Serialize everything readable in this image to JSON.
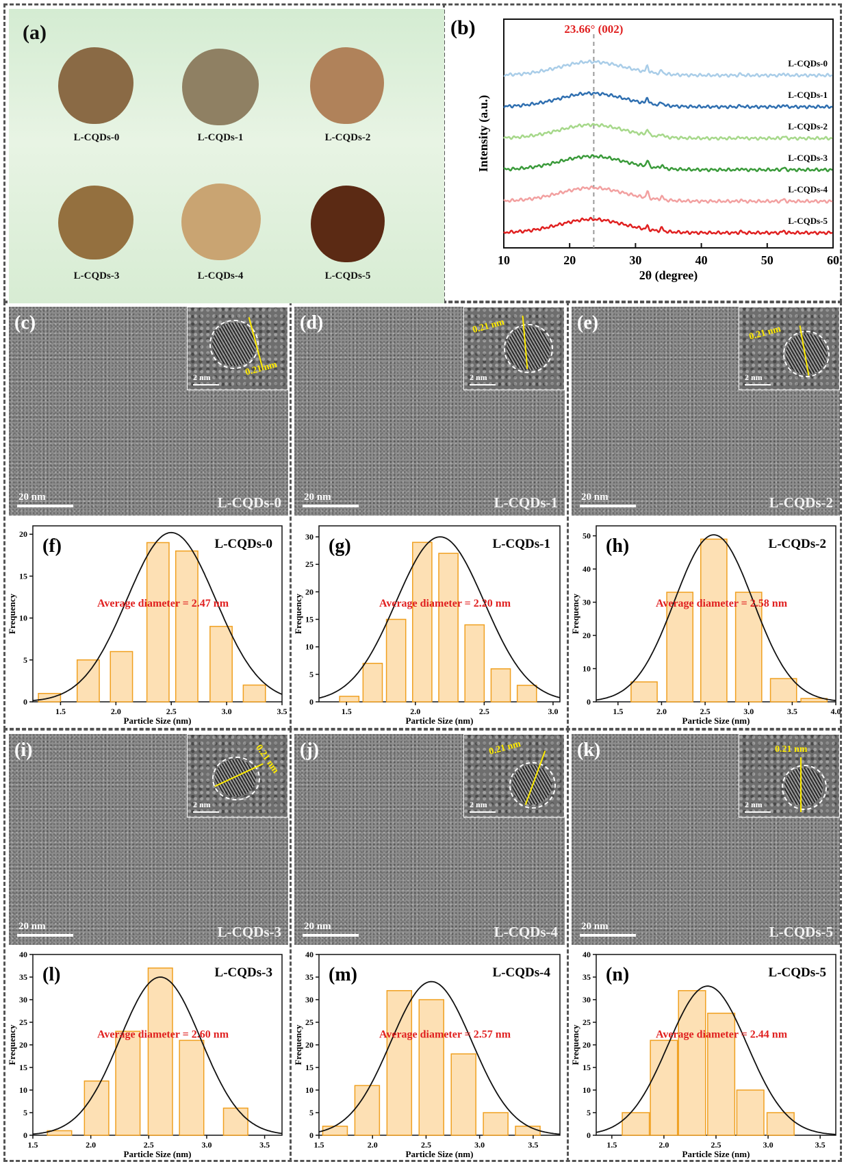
{
  "panels": {
    "a": {
      "letter": "(a)",
      "samples": [
        {
          "label": "L-CQDs-0",
          "color": "#8a6a45"
        },
        {
          "label": "L-CQDs-1",
          "color": "#8f8063"
        },
        {
          "label": "L-CQDs-2",
          "color": "#b0825a"
        },
        {
          "label": "L-CQDs-3",
          "color": "#94703f"
        },
        {
          "label": "L-CQDs-4",
          "color": "#c9a472"
        },
        {
          "label": "L-CQDs-5",
          "color": "#5b2a14"
        }
      ]
    },
    "tem": [
      {
        "letter": "(c)",
        "sample": "L-CQDs-0",
        "scale": "20 nm",
        "inset_scale": "2 nm",
        "d_spacing": "0.21 nm"
      },
      {
        "letter": "(d)",
        "sample": "L-CQDs-1",
        "scale": "20 nm",
        "inset_scale": "2 nm",
        "d_spacing": "0.21 nm"
      },
      {
        "letter": "(e)",
        "sample": "L-CQDs-2",
        "scale": "20 nm",
        "inset_scale": "2 nm",
        "d_spacing": "0.21 nm"
      },
      {
        "letter": "(i)",
        "sample": "L-CQDs-3",
        "scale": "20 nm",
        "inset_scale": "2 nm",
        "d_spacing": "0.21 nm"
      },
      {
        "letter": "(j)",
        "sample": "L-CQDs-4",
        "scale": "20 nm",
        "inset_scale": "2 nm",
        "d_spacing": "0.21 nm"
      },
      {
        "letter": "(k)",
        "sample": "L-CQDs-5",
        "scale": "20 nm",
        "inset_scale": "2 nm",
        "d_spacing": "0.21 nm"
      }
    ]
  },
  "chart_data": [
    {
      "id": "b",
      "type": "line",
      "letter": "(b)",
      "xlabel": "2θ (degree)",
      "ylabel": "Intensity (a.u.)",
      "xlim": [
        10,
        60
      ],
      "xticks": [
        10,
        20,
        30,
        40,
        50,
        60
      ],
      "annotation": {
        "text": "23.66° (002)",
        "x": 23.66,
        "color": "#e02020"
      },
      "series": [
        {
          "name": "L-CQDs-0",
          "color": "#a9cde8"
        },
        {
          "name": "L-CQDs-1",
          "color": "#2f6fb0"
        },
        {
          "name": "L-CQDs-2",
          "color": "#a6d88a"
        },
        {
          "name": "L-CQDs-3",
          "color": "#3a9a3a"
        },
        {
          "name": "L-CQDs-4",
          "color": "#f2a0a0"
        },
        {
          "name": "L-CQDs-5",
          "color": "#e02020"
        }
      ]
    },
    {
      "id": "f",
      "type": "bar",
      "letter": "(f)",
      "series_name": "L-CQDs-0",
      "annotation": "Average diameter = 2.47 nm",
      "xlabel": "Particle Size (nm)",
      "ylabel": "Frequency",
      "xlim": [
        1.25,
        3.5
      ],
      "ylim": [
        0,
        21
      ],
      "xticks": [
        1.5,
        2.0,
        2.5,
        3.0,
        3.5
      ],
      "yticks": [
        0,
        5,
        10,
        15,
        20
      ],
      "bin_width": 0.2,
      "centers": [
        1.4,
        1.75,
        2.05,
        2.38,
        2.64,
        2.95,
        3.25
      ],
      "values": [
        1,
        5,
        6,
        19,
        18,
        9,
        2
      ],
      "fit_mean": 2.5,
      "fit_sd": 0.4,
      "fit_peak": 20.2
    },
    {
      "id": "g",
      "type": "bar",
      "letter": "(g)",
      "series_name": "L-CQDs-1",
      "annotation": "Average diameter = 2.20 nm",
      "xlabel": "Particle Size (nm)",
      "ylabel": "Frequency",
      "xlim": [
        1.3,
        3.05
      ],
      "ylim": [
        0,
        32
      ],
      "xticks": [
        1.5,
        2.0,
        2.5,
        3.0
      ],
      "yticks": [
        0,
        5,
        10,
        15,
        20,
        25,
        30
      ],
      "bin_width": 0.14,
      "centers": [
        1.52,
        1.69,
        1.86,
        2.05,
        2.24,
        2.43,
        2.62,
        2.81
      ],
      "values": [
        1,
        7,
        15,
        29,
        27,
        14,
        6,
        3
      ],
      "fit_mean": 2.18,
      "fit_sd": 0.32,
      "fit_peak": 30
    },
    {
      "id": "h",
      "type": "bar",
      "letter": "(h)",
      "series_name": "L-CQDs-2",
      "annotation": "Average diameter = 2.58 nm",
      "xlabel": "Particle Size (nm)",
      "ylabel": "Frequency",
      "xlim": [
        1.25,
        4.0
      ],
      "ylim": [
        0,
        53
      ],
      "xticks": [
        1.5,
        2.0,
        2.5,
        3.0,
        3.5,
        4.0
      ],
      "yticks": [
        0,
        10,
        20,
        30,
        40,
        50
      ],
      "bin_width": 0.3,
      "centers": [
        1.8,
        2.21,
        2.6,
        3.0,
        3.4,
        3.75
      ],
      "values": [
        6,
        33,
        49,
        33,
        7,
        1
      ],
      "fit_mean": 2.6,
      "fit_sd": 0.45,
      "fit_peak": 50.3
    },
    {
      "id": "l",
      "type": "bar",
      "letter": "(l)",
      "series_name": "L-CQDs-3",
      "annotation": "Average diameter = 2.60 nm",
      "xlabel": "Particle Size (nm)",
      "ylabel": "Frequency",
      "xlim": [
        1.5,
        3.65
      ],
      "ylim": [
        0,
        40
      ],
      "xticks": [
        1.5,
        2.0,
        2.5,
        3.0,
        3.5
      ],
      "yticks": [
        0,
        5,
        10,
        15,
        20,
        25,
        30,
        35,
        40
      ],
      "bin_width": 0.21,
      "centers": [
        1.73,
        2.05,
        2.32,
        2.6,
        2.87,
        3.25
      ],
      "values": [
        1,
        12,
        23,
        37,
        21,
        6
      ],
      "fit_mean": 2.6,
      "fit_sd": 0.35,
      "fit_peak": 35
    },
    {
      "id": "m",
      "type": "bar",
      "letter": "(m)",
      "series_name": "L-CQDs-4",
      "annotation": "Average diameter = 2.57 nm",
      "xlabel": "Particle Size (nm)",
      "ylabel": "Frequency",
      "xlim": [
        1.5,
        3.75
      ],
      "ylim": [
        0,
        40
      ],
      "xticks": [
        1.5,
        2.0,
        2.5,
        3.0,
        3.5
      ],
      "yticks": [
        0,
        5,
        10,
        15,
        20,
        25,
        30,
        35,
        40
      ],
      "bin_width": 0.23,
      "centers": [
        1.65,
        1.95,
        2.25,
        2.55,
        2.85,
        3.15,
        3.45
      ],
      "values": [
        2,
        11,
        32,
        30,
        18,
        5,
        2
      ],
      "fit_mean": 2.55,
      "fit_sd": 0.38,
      "fit_peak": 34
    },
    {
      "id": "n",
      "type": "bar",
      "letter": "(n)",
      "series_name": "L-CQDs-5",
      "annotation": "Average diameter = 2.44 nm",
      "xlabel": "Particle Size (nm)",
      "ylabel": "Frequency",
      "xlim": [
        1.35,
        3.65
      ],
      "ylim": [
        0,
        40
      ],
      "xticks": [
        1.5,
        2.0,
        2.5,
        3.0,
        3.5
      ],
      "yticks": [
        0,
        5,
        10,
        15,
        20,
        25,
        30,
        35,
        40
      ],
      "bin_width": 0.26,
      "centers": [
        1.73,
        2.0,
        2.27,
        2.55,
        2.83,
        3.12
      ],
      "values": [
        5,
        21,
        32,
        27,
        10,
        5
      ],
      "fit_mean": 2.42,
      "fit_sd": 0.38,
      "fit_peak": 33
    }
  ]
}
